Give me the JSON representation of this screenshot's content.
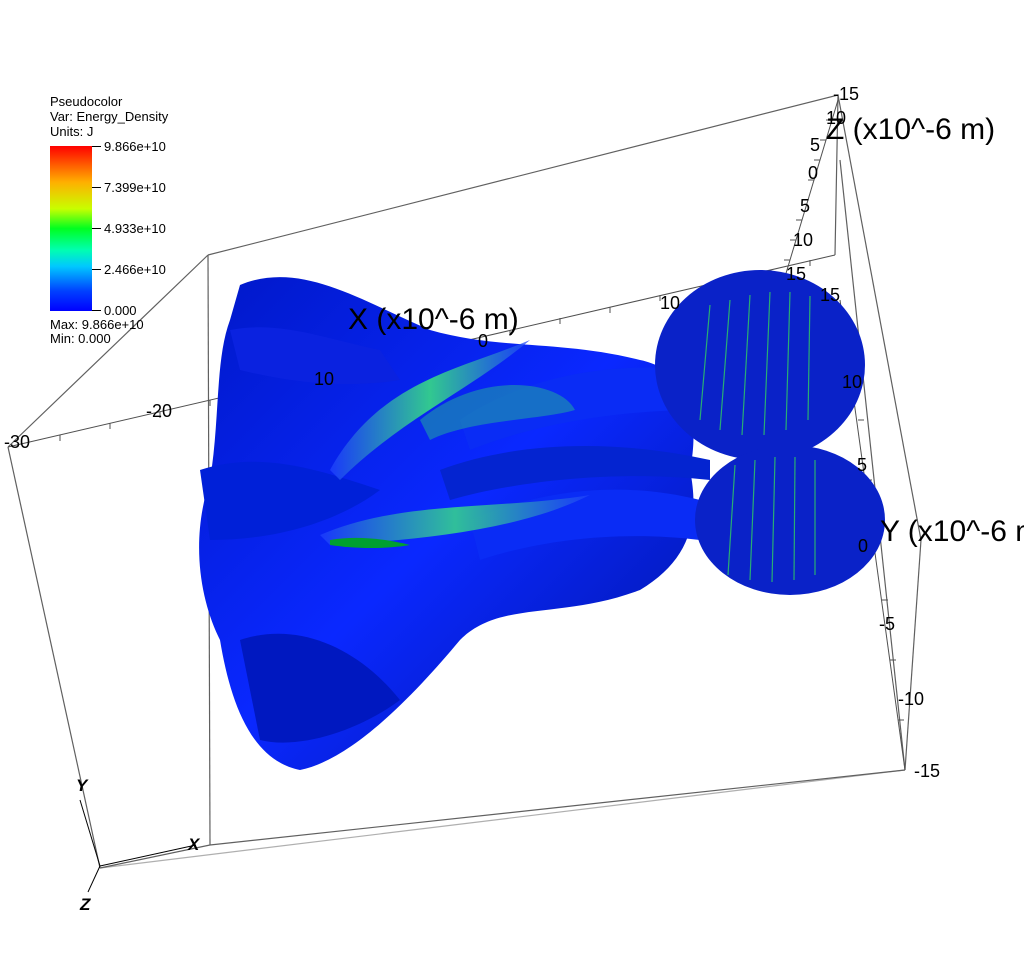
{
  "legend": {
    "plot_type": "Pseudocolor",
    "var": "Var: Energy_Density",
    "units": "Units: J",
    "ticks": [
      "9.866e+10",
      "7.399e+10",
      "4.933e+10",
      "2.466e+10",
      "0.000"
    ],
    "max": "Max:  9.866e+10",
    "min": "Min:  0.000"
  },
  "axes": {
    "x_title": "X (x10^-6 m)",
    "y_title": "Y (x10^-6 m)",
    "z_title": "Z (x10^-6 m)",
    "x_ticks": [
      "-30",
      "-20",
      "10",
      "0",
      "10"
    ],
    "z_ticks": [
      "-15",
      "10",
      "5",
      "0",
      "5",
      "10",
      "15"
    ],
    "y_ticks": [
      "15",
      "10",
      "5",
      "0",
      "-5",
      "-10",
      "-15"
    ]
  },
  "triad": {
    "x": "X",
    "y": "Y",
    "z": "Z"
  },
  "colors": {
    "surface": "#0a1ef0",
    "highlight": "#30ff60",
    "background": "#ffffff"
  }
}
